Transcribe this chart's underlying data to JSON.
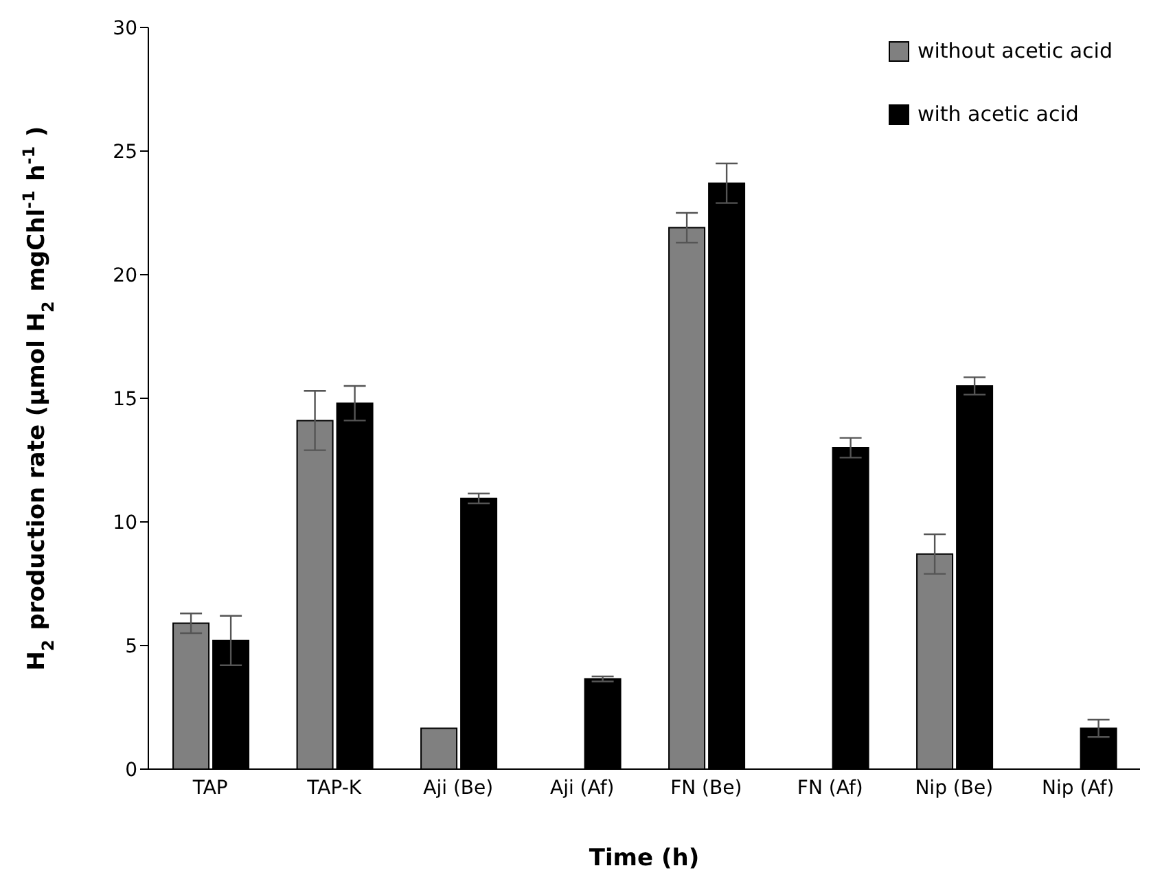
{
  "chart_data": {
    "type": "bar",
    "xlabel": "Time (h)",
    "ylabel": "H$_{2}$ production rate (µmol H$_{2}$ mgChl$^{-1}$ h$^{-1}$)",
    "categories": [
      "TAP",
      "TAP-K",
      "Aji (Be)",
      "Aji (Af)",
      "FN (Be)",
      "FN (Af)",
      "Nip (Be)",
      "Nip (Af)"
    ],
    "series": [
      {
        "name": "without acetic acid",
        "color": "#808080",
        "values": [
          5.9,
          14.1,
          1.65,
          null,
          21.9,
          null,
          8.7,
          null
        ],
        "errors": [
          0.4,
          1.2,
          null,
          null,
          0.6,
          null,
          0.8,
          null
        ]
      },
      {
        "name": "with acetic acid",
        "color": "#000000",
        "values": [
          5.2,
          14.8,
          10.95,
          3.65,
          23.7,
          13.0,
          15.5,
          1.65
        ],
        "errors": [
          1.0,
          0.7,
          0.2,
          0.1,
          0.8,
          0.4,
          0.35,
          0.35
        ]
      }
    ],
    "ylim": [
      0,
      30
    ],
    "yticks": [
      0,
      5,
      10,
      15,
      20,
      25,
      30
    ],
    "grid": false,
    "legend": "top right"
  }
}
